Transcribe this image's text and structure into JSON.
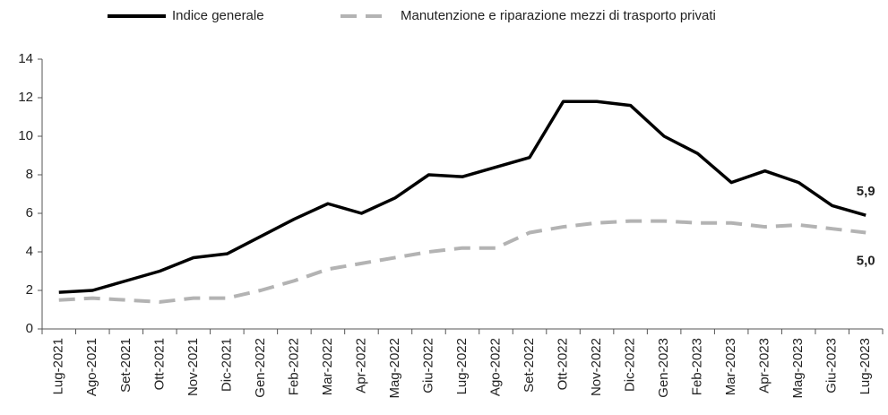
{
  "chart_data": {
    "type": "line",
    "categories": [
      "Lug-2021",
      "Ago-2021",
      "Set-2021",
      "Ott-2021",
      "Nov-2021",
      "Dic-2021",
      "Gen-2022",
      "Feb-2022",
      "Mar-2022",
      "Apr-2022",
      "Mag-2022",
      "Giu-2022",
      "Lug-2022",
      "Ago-2022",
      "Set-2022",
      "Ott-2022",
      "Nov-2022",
      "Dic-2022",
      "Gen-2023",
      "Feb-2023",
      "Mar-2023",
      "Apr-2023",
      "Mag-2023",
      "Giu-2023",
      "Lug-2023"
    ],
    "series": [
      {
        "name": "Indice generale",
        "color": "#000000",
        "dashed": false,
        "values": [
          1.9,
          2.0,
          2.5,
          3.0,
          3.7,
          3.9,
          4.8,
          5.7,
          6.5,
          6.0,
          6.8,
          8.0,
          7.9,
          8.4,
          8.9,
          11.8,
          11.8,
          11.6,
          10.0,
          9.1,
          7.6,
          8.2,
          7.6,
          6.4,
          5.9
        ],
        "value_labels": [
          null,
          null,
          null,
          null,
          null,
          null,
          null,
          null,
          null,
          null,
          null,
          null,
          null,
          null,
          null,
          null,
          null,
          null,
          null,
          null,
          null,
          null,
          null,
          null,
          "5,9"
        ]
      },
      {
        "name": "Manutenzione e riparazione mezzi di trasporto privati",
        "color": "#b3b3b3",
        "dashed": true,
        "values": [
          1.5,
          1.6,
          1.5,
          1.4,
          1.6,
          1.6,
          2.0,
          2.5,
          3.1,
          3.4,
          3.7,
          4.0,
          4.2,
          4.2,
          5.0,
          5.3,
          5.5,
          5.6,
          5.6,
          5.5,
          5.5,
          5.3,
          5.4,
          5.2,
          5.0
        ],
        "value_labels": [
          null,
          null,
          null,
          null,
          null,
          null,
          null,
          null,
          null,
          null,
          null,
          null,
          null,
          null,
          null,
          null,
          null,
          null,
          null,
          null,
          null,
          null,
          null,
          null,
          "5,0"
        ]
      }
    ],
    "ylim": [
      0,
      14
    ],
    "yticks": [
      0,
      2,
      4,
      6,
      8,
      10,
      12,
      14
    ]
  }
}
